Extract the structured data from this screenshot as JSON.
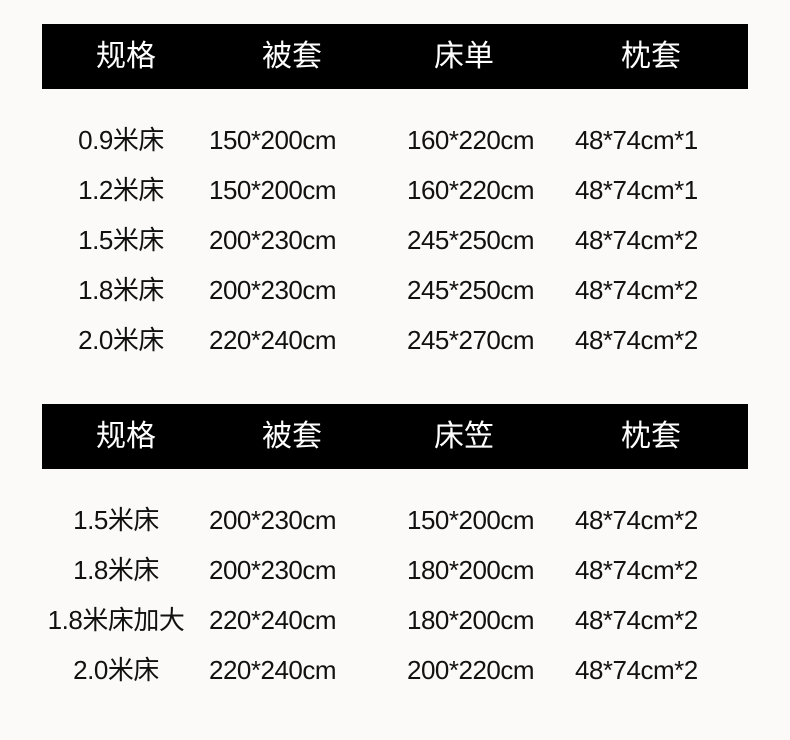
{
  "table1": {
    "headers": [
      "规格",
      "被套",
      "床单",
      "枕套"
    ],
    "rows": [
      [
        "0.9米床",
        "150*200cm",
        "160*220cm",
        "48*74cm*1"
      ],
      [
        "1.2米床",
        "150*200cm",
        "160*220cm",
        "48*74cm*1"
      ],
      [
        "1.5米床",
        "200*230cm",
        "245*250cm",
        "48*74cm*2"
      ],
      [
        "1.8米床",
        "200*230cm",
        "245*250cm",
        "48*74cm*2"
      ],
      [
        "2.0米床",
        "220*240cm",
        "245*270cm",
        "48*74cm*2"
      ]
    ]
  },
  "table2": {
    "headers": [
      "规格",
      "被套",
      "床笠",
      "枕套"
    ],
    "rows": [
      [
        "1.5米床",
        "200*230cm",
        "150*200cm",
        "48*74cm*2"
      ],
      [
        "1.8米床",
        "200*230cm",
        "180*200cm",
        "48*74cm*2"
      ],
      [
        "1.8米床加大",
        "220*240cm",
        "180*200cm",
        "48*74cm*2"
      ],
      [
        "2.0米床",
        "220*240cm",
        "200*220cm",
        "48*74cm*2"
      ]
    ]
  },
  "colors": {
    "header_bg": "#000000",
    "header_text": "#ffffff",
    "background": "#fbfaf8"
  }
}
